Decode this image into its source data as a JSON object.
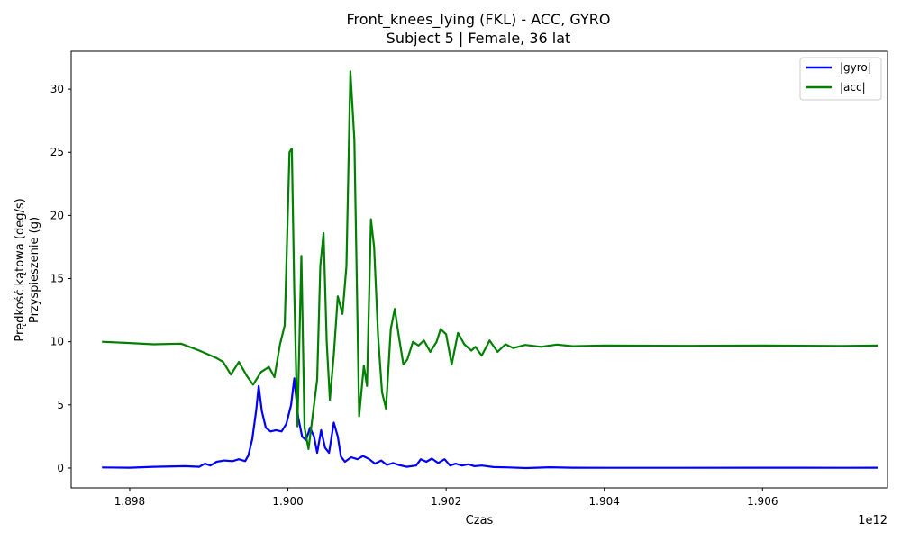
{
  "chart_data": {
    "type": "line",
    "title_line1": "Front_knees_lying (FKL) - ACC, GYRO",
    "title_line2": "Subject 5 | Female, 36 lat",
    "xlabel": "Czas",
    "x_offset_label": "1e12",
    "ylabel_line1": "Prędkość kątowa (deg/s)",
    "ylabel_line2": "Przyspieszenie (g)",
    "xlim": [
      1.89726,
      1.90758
    ],
    "ylim": [
      -1.57,
      33.0
    ],
    "x_ticks": [
      1.898,
      1.9,
      1.902,
      1.904,
      1.906
    ],
    "x_tick_labels": [
      "1.898",
      "1.900",
      "1.902",
      "1.904",
      "1.906"
    ],
    "y_ticks": [
      0,
      5,
      10,
      15,
      20,
      25,
      30
    ],
    "y_tick_labels": [
      "0",
      "5",
      "10",
      "15",
      "20",
      "25",
      "30"
    ],
    "grid": false,
    "legend_position": "top-right",
    "series": [
      {
        "name": "|gyro|",
        "color": "#0000ff",
        "points": [
          [
            1.89765,
            0.05
          ],
          [
            1.898,
            0.03
          ],
          [
            1.8983,
            0.1
          ],
          [
            1.8987,
            0.15
          ],
          [
            1.89888,
            0.1
          ],
          [
            1.89895,
            0.35
          ],
          [
            1.89902,
            0.2
          ],
          [
            1.8991,
            0.5
          ],
          [
            1.8992,
            0.6
          ],
          [
            1.8993,
            0.55
          ],
          [
            1.89938,
            0.7
          ],
          [
            1.89946,
            0.55
          ],
          [
            1.8995,
            1.0
          ],
          [
            1.89955,
            2.3
          ],
          [
            1.8996,
            4.6
          ],
          [
            1.89963,
            6.5
          ],
          [
            1.89967,
            4.5
          ],
          [
            1.89972,
            3.2
          ],
          [
            1.89978,
            2.9
          ],
          [
            1.89985,
            3.0
          ],
          [
            1.89992,
            2.9
          ],
          [
            1.89998,
            3.5
          ],
          [
            1.90004,
            5.0
          ],
          [
            1.90008,
            7.1
          ],
          [
            1.90013,
            4.0
          ],
          [
            1.90018,
            2.5
          ],
          [
            1.90023,
            2.2
          ],
          [
            1.90028,
            3.2
          ],
          [
            1.90033,
            2.5
          ],
          [
            1.90037,
            1.2
          ],
          [
            1.90042,
            3.0
          ],
          [
            1.90047,
            1.6
          ],
          [
            1.90052,
            1.2
          ],
          [
            1.90058,
            3.6
          ],
          [
            1.90063,
            2.5
          ],
          [
            1.90067,
            0.9
          ],
          [
            1.90072,
            0.5
          ],
          [
            1.9008,
            0.85
          ],
          [
            1.90088,
            0.7
          ],
          [
            1.90095,
            0.95
          ],
          [
            1.90103,
            0.7
          ],
          [
            1.9011,
            0.35
          ],
          [
            1.90118,
            0.6
          ],
          [
            1.90125,
            0.25
          ],
          [
            1.90133,
            0.4
          ],
          [
            1.9014,
            0.25
          ],
          [
            1.9015,
            0.1
          ],
          [
            1.90162,
            0.2
          ],
          [
            1.90168,
            0.7
          ],
          [
            1.90175,
            0.5
          ],
          [
            1.90182,
            0.75
          ],
          [
            1.9019,
            0.4
          ],
          [
            1.90198,
            0.7
          ],
          [
            1.90205,
            0.2
          ],
          [
            1.90212,
            0.35
          ],
          [
            1.9022,
            0.2
          ],
          [
            1.90228,
            0.3
          ],
          [
            1.90236,
            0.15
          ],
          [
            1.90245,
            0.2
          ],
          [
            1.9026,
            0.08
          ],
          [
            1.9028,
            0.05
          ],
          [
            1.90301,
            0.0
          ],
          [
            1.90331,
            0.06
          ],
          [
            1.9036,
            0.03
          ],
          [
            1.904,
            0.02
          ],
          [
            1.905,
            0.02
          ],
          [
            1.906,
            0.03
          ],
          [
            1.907,
            0.02
          ],
          [
            1.90746,
            0.03
          ]
        ]
      },
      {
        "name": "|acc|",
        "color": "#008000",
        "points": [
          [
            1.89765,
            10.0
          ],
          [
            1.898,
            9.9
          ],
          [
            1.8983,
            9.8
          ],
          [
            1.89865,
            9.85
          ],
          [
            1.89888,
            9.3
          ],
          [
            1.8991,
            8.7
          ],
          [
            1.89918,
            8.4
          ],
          [
            1.89928,
            7.4
          ],
          [
            1.89938,
            8.4
          ],
          [
            1.89948,
            7.3
          ],
          [
            1.89956,
            6.6
          ],
          [
            1.89966,
            7.6
          ],
          [
            1.89976,
            8.0
          ],
          [
            1.89983,
            7.2
          ],
          [
            1.8999,
            9.8
          ],
          [
            1.89996,
            11.3
          ],
          [
            1.90002,
            25.0
          ],
          [
            1.90005,
            25.3
          ],
          [
            1.90008,
            14.0
          ],
          [
            1.90012,
            3.3
          ],
          [
            1.90017,
            16.8
          ],
          [
            1.90021,
            3.2
          ],
          [
            1.90026,
            1.5
          ],
          [
            1.90031,
            4.0
          ],
          [
            1.90037,
            7.0
          ],
          [
            1.90041,
            16.0
          ],
          [
            1.90045,
            18.6
          ],
          [
            1.90049,
            10.0
          ],
          [
            1.90053,
            5.4
          ],
          [
            1.90058,
            9.0
          ],
          [
            1.90063,
            13.6
          ],
          [
            1.90069,
            12.2
          ],
          [
            1.90074,
            16.0
          ],
          [
            1.90079,
            31.4
          ],
          [
            1.90084,
            26.0
          ],
          [
            1.9009,
            4.1
          ],
          [
            1.90096,
            8.1
          ],
          [
            1.901,
            6.5
          ],
          [
            1.90105,
            19.7
          ],
          [
            1.90109,
            17.5
          ],
          [
            1.90114,
            10.5
          ],
          [
            1.90119,
            6.0
          ],
          [
            1.90124,
            4.7
          ],
          [
            1.9013,
            11.0
          ],
          [
            1.90135,
            12.6
          ],
          [
            1.9014,
            10.5
          ],
          [
            1.90146,
            8.2
          ],
          [
            1.90151,
            8.6
          ],
          [
            1.90158,
            10.0
          ],
          [
            1.90165,
            9.7
          ],
          [
            1.90172,
            10.1
          ],
          [
            1.9018,
            9.2
          ],
          [
            1.90188,
            10.0
          ],
          [
            1.90193,
            11.0
          ],
          [
            1.902,
            10.6
          ],
          [
            1.90207,
            8.2
          ],
          [
            1.90215,
            10.7
          ],
          [
            1.90223,
            9.8
          ],
          [
            1.90232,
            9.3
          ],
          [
            1.90237,
            9.6
          ],
          [
            1.90245,
            8.9
          ],
          [
            1.90255,
            10.1
          ],
          [
            1.90265,
            9.2
          ],
          [
            1.90275,
            9.8
          ],
          [
            1.90285,
            9.5
          ],
          [
            1.903,
            9.75
          ],
          [
            1.9032,
            9.6
          ],
          [
            1.9034,
            9.78
          ],
          [
            1.9036,
            9.65
          ],
          [
            1.904,
            9.7
          ],
          [
            1.905,
            9.68
          ],
          [
            1.906,
            9.7
          ],
          [
            1.907,
            9.66
          ],
          [
            1.90746,
            9.7
          ]
        ]
      }
    ]
  }
}
